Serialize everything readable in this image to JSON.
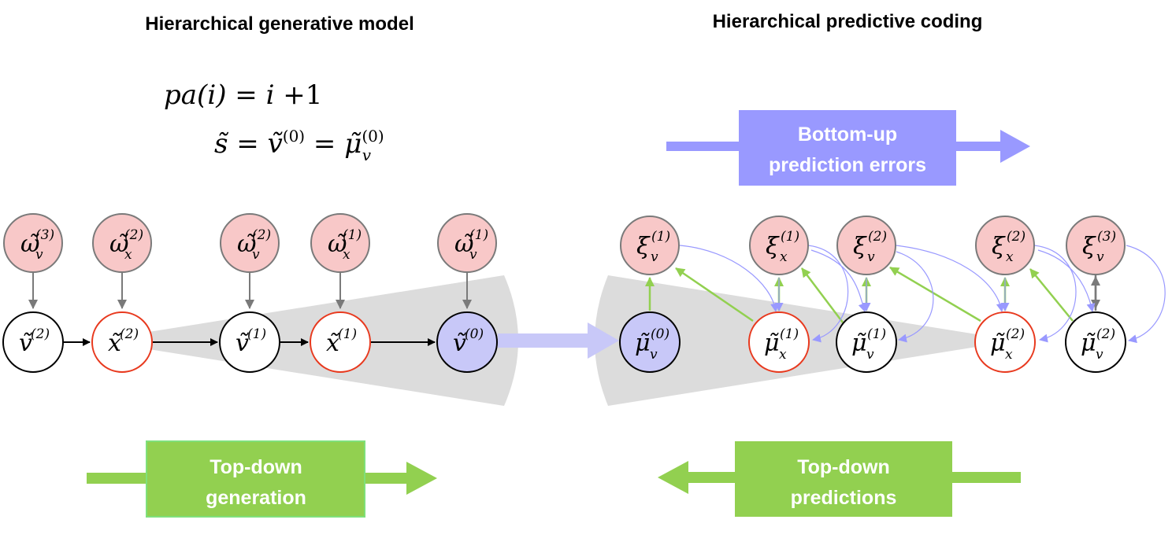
{
  "panels": {
    "left_title": "Hierarchical generative model",
    "right_title": "Hierarchical predictive coding"
  },
  "equations": {
    "line1": "pa(i) = i + 1",
    "line2": "s̃ = ṽ(0) = μ̃v(0)"
  },
  "banners": {
    "bottom_up": [
      "Bottom-up",
      "prediction errors"
    ],
    "top_down_generation": [
      "Top-down",
      "generation"
    ],
    "top_down_predictions": [
      "Top-down",
      "predictions"
    ]
  },
  "left_nodes": {
    "noise": [
      {
        "sym": "ω̃",
        "sub": "v",
        "sup": "(3)"
      },
      {
        "sym": "ω̃",
        "sub": "x",
        "sup": "(2)"
      },
      {
        "sym": "ω̃",
        "sub": "v",
        "sup": "(2)"
      },
      {
        "sym": "ω̃",
        "sub": "x",
        "sup": "(1)"
      },
      {
        "sym": "ω̃",
        "sub": "v",
        "sup": "(1)"
      }
    ],
    "states": [
      {
        "sym": "ṽ",
        "sub": "",
        "sup": "(2)"
      },
      {
        "sym": "x̃",
        "sub": "",
        "sup": "(2)"
      },
      {
        "sym": "ṽ",
        "sub": "",
        "sup": "(1)"
      },
      {
        "sym": "x̃",
        "sub": "",
        "sup": "(1)"
      },
      {
        "sym": "ṽ",
        "sub": "",
        "sup": "(0)"
      }
    ]
  },
  "right_nodes": {
    "errors": [
      {
        "sym": "ξ",
        "sub": "v",
        "sup": "(1)"
      },
      {
        "sym": "ξ",
        "sub": "x",
        "sup": "(1)"
      },
      {
        "sym": "ξ",
        "sub": "v",
        "sup": "(2)"
      },
      {
        "sym": "ξ",
        "sub": "x",
        "sup": "(2)"
      },
      {
        "sym": "ξ",
        "sub": "v",
        "sup": "(3)"
      }
    ],
    "expectations": [
      {
        "sym": "μ̃",
        "sub": "v",
        "sup": "(0)"
      },
      {
        "sym": "μ̃",
        "sub": "x",
        "sup": "(1)"
      },
      {
        "sym": "μ̃",
        "sub": "v",
        "sup": "(1)"
      },
      {
        "sym": "μ̃",
        "sub": "x",
        "sup": "(2)"
      },
      {
        "sym": "μ̃",
        "sub": "v",
        "sup": "(2)"
      }
    ]
  },
  "colors": {
    "noise_fill": "#f8c8c8",
    "noise_stroke": "#7a7a7a",
    "hidden_state_stroke": "#e8391e",
    "cause_stroke": "#000000",
    "observed_fill": "#c8c8f8",
    "bottom_up": "#9999ff",
    "top_down": "#92d050",
    "cone": "#dcdcdc"
  }
}
